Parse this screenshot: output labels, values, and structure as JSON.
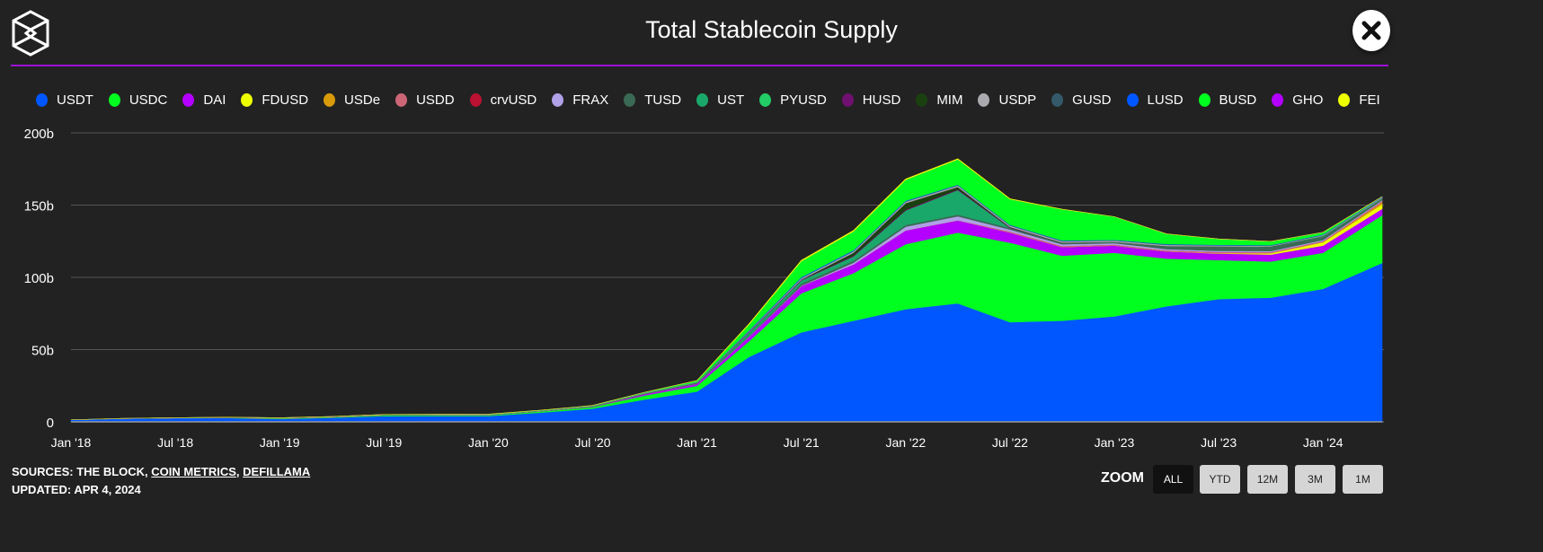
{
  "header": {
    "title": "Total Stablecoin Supply",
    "logo_icon": "the-block-logo-icon",
    "close_icon": "close-icon",
    "accent_color": "#9b10d8"
  },
  "footer": {
    "sources_prefix": "SOURCES: THE BLOCK, ",
    "sources_links": [
      "COIN METRICS",
      "DEFILLAMA"
    ],
    "updated": "UPDATED: APR 4, 2024"
  },
  "zoom": {
    "label": "ZOOM",
    "buttons": [
      "ALL",
      "YTD",
      "12M",
      "3M",
      "1M"
    ],
    "active": "ALL"
  },
  "chart_data": {
    "type": "area",
    "stacked": true,
    "title": "Total Stablecoin Supply",
    "xlabel": "",
    "ylabel": "",
    "ylim": [
      0,
      200
    ],
    "y_unit": "b",
    "yticks": [
      "0",
      "50b",
      "100b",
      "150b",
      "200b"
    ],
    "xticks": [
      "Jan '18",
      "Jul '18",
      "Jan '19",
      "Jul '19",
      "Jan '20",
      "Jul '20",
      "Jan '21",
      "Jul '21",
      "Jan '22",
      "Jul '22",
      "Jan '23",
      "Jul '23",
      "Jan '24"
    ],
    "grid": true,
    "legend": "top",
    "x": [
      "2018-01",
      "2018-04",
      "2018-07",
      "2018-10",
      "2019-01",
      "2019-04",
      "2019-07",
      "2019-10",
      "2020-01",
      "2020-04",
      "2020-07",
      "2020-10",
      "2021-01",
      "2021-04",
      "2021-07",
      "2021-10",
      "2022-01",
      "2022-04",
      "2022-07",
      "2022-10",
      "2023-01",
      "2023-04",
      "2023-07",
      "2023-10",
      "2024-01",
      "2024-04"
    ],
    "series": [
      {
        "name": "USDT",
        "color": "#0057ff",
        "values": [
          1.4,
          2.3,
          2.7,
          2.7,
          2.0,
          2.8,
          4.0,
          4.1,
          4.1,
          6.4,
          9.2,
          15.5,
          21,
          45,
          62,
          70,
          78,
          82,
          69,
          70,
          73,
          80,
          85,
          86,
          92,
          110
        ]
      },
      {
        "name": "USDC",
        "color": "#00ff1e",
        "values": [
          0,
          0,
          0,
          0.1,
          0.25,
          0.3,
          0.5,
          0.5,
          0.5,
          0.8,
          1.1,
          2.8,
          4,
          11,
          27,
          33,
          45,
          49,
          55,
          45,
          44,
          33,
          27,
          25,
          25,
          33
        ]
      },
      {
        "name": "DAI",
        "color": "#b300ff",
        "values": [
          0,
          0,
          0,
          0.05,
          0.08,
          0.1,
          0.1,
          0.1,
          0.1,
          0.12,
          0.2,
          0.9,
          1.3,
          3,
          5,
          6,
          9.5,
          8.5,
          7,
          6,
          5,
          5,
          4.5,
          4.8,
          5,
          4.5
        ]
      },
      {
        "name": "FDUSD",
        "color": "#eeff00",
        "values": [
          0,
          0,
          0,
          0,
          0,
          0,
          0,
          0,
          0,
          0,
          0,
          0,
          0,
          0,
          0,
          0,
          0,
          0,
          0,
          0,
          0,
          0,
          0.3,
          0.9,
          2.3,
          3
        ]
      },
      {
        "name": "USDe",
        "color": "#d99a0a",
        "values": [
          0,
          0,
          0,
          0,
          0,
          0,
          0,
          0,
          0,
          0,
          0,
          0,
          0,
          0,
          0,
          0,
          0,
          0,
          0,
          0,
          0,
          0,
          0,
          0,
          0.1,
          1.5
        ]
      },
      {
        "name": "USDD",
        "color": "#cc6677",
        "values": [
          0,
          0,
          0,
          0,
          0,
          0,
          0,
          0,
          0,
          0,
          0,
          0,
          0,
          0,
          0,
          0,
          0,
          0,
          0.7,
          0.7,
          0.7,
          0.7,
          0.7,
          0.7,
          0.7,
          0.7
        ]
      },
      {
        "name": "crvUSD",
        "color": "#bb1133",
        "values": [
          0,
          0,
          0,
          0,
          0,
          0,
          0,
          0,
          0,
          0,
          0,
          0,
          0,
          0,
          0,
          0,
          0,
          0,
          0,
          0,
          0,
          0,
          0.05,
          0.1,
          0.1,
          0.1
        ]
      },
      {
        "name": "FRAX",
        "color": "#b0a0e8",
        "values": [
          0,
          0,
          0,
          0,
          0,
          0,
          0,
          0,
          0,
          0,
          0,
          0,
          0.1,
          0.2,
          0.3,
          1.2,
          2.6,
          2.8,
          1.4,
          1.2,
          1,
          0.9,
          0.8,
          0.7,
          0.65,
          0.65
        ]
      },
      {
        "name": "TUSD",
        "color": "#3a6a55",
        "values": [
          0,
          0.1,
          0.15,
          0.2,
          0.2,
          0.2,
          0.2,
          0.15,
          0.14,
          0.14,
          0.2,
          0.3,
          0.3,
          0.6,
          1.4,
          1.3,
          1.2,
          1.1,
          1.1,
          0.9,
          0.8,
          2,
          3,
          3,
          2.5,
          1
        ]
      },
      {
        "name": "UST",
        "color": "#1aa86a",
        "values": [
          0,
          0,
          0,
          0,
          0,
          0,
          0,
          0,
          0,
          0,
          0,
          0,
          0.2,
          2,
          2.2,
          3,
          10,
          17,
          0,
          0,
          0,
          0,
          0,
          0,
          0,
          0
        ]
      },
      {
        "name": "PYUSD",
        "color": "#22cc66",
        "values": [
          0,
          0,
          0,
          0,
          0,
          0,
          0,
          0,
          0,
          0,
          0,
          0,
          0,
          0,
          0,
          0,
          0,
          0,
          0,
          0,
          0,
          0,
          0,
          0.05,
          0.3,
          0.3
        ]
      },
      {
        "name": "HUSD",
        "color": "#701070",
        "values": [
          0,
          0,
          0,
          0,
          0,
          0,
          0,
          0,
          0,
          0,
          0.1,
          0.2,
          0.3,
          0.5,
          0.5,
          0.6,
          0.6,
          0.6,
          0.4,
          0.1,
          0,
          0,
          0,
          0,
          0,
          0
        ]
      },
      {
        "name": "MIM",
        "color": "#1a4010",
        "values": [
          0,
          0,
          0,
          0,
          0,
          0,
          0,
          0,
          0,
          0,
          0,
          0,
          0,
          0,
          0.1,
          2,
          4.5,
          1.6,
          0.3,
          0.2,
          0.1,
          0.1,
          0.1,
          0.1,
          0.1,
          0.1
        ]
      },
      {
        "name": "USDP",
        "color": "#aaaab0",
        "values": [
          0,
          0,
          0,
          0.15,
          0.2,
          0.2,
          0.2,
          0.2,
          0.25,
          0.25,
          0.25,
          0.3,
          0.3,
          0.5,
          0.9,
          0.95,
          0.95,
          0.95,
          0.9,
          0.85,
          0.8,
          0.8,
          0.6,
          0.5,
          0.5,
          0.5
        ]
      },
      {
        "name": "GUSD",
        "color": "#345a6a",
        "values": [
          0,
          0,
          0,
          0.05,
          0.1,
          0.1,
          0.1,
          0.1,
          0.1,
          0.1,
          0.1,
          0.1,
          0.1,
          0.2,
          0.2,
          0.3,
          0.3,
          0.3,
          0.3,
          0.3,
          0.3,
          0.3,
          0.2,
          0.2,
          0.1,
          0.1
        ]
      },
      {
        "name": "LUSD",
        "color": "#0057ff",
        "values": [
          0,
          0,
          0,
          0,
          0,
          0,
          0,
          0,
          0,
          0,
          0,
          0,
          0,
          0.5,
          0.6,
          0.5,
          0.4,
          0.3,
          0.3,
          0.3,
          0.3,
          0.3,
          0.3,
          0.3,
          0.3,
          0.3
        ]
      },
      {
        "name": "BUSD",
        "color": "#00ff1e",
        "values": [
          0,
          0,
          0,
          0,
          0,
          0,
          0,
          0.02,
          0.1,
          0.2,
          0.2,
          0.4,
          1,
          4,
          11,
          13,
          14.5,
          17.5,
          17.7,
          21.5,
          16,
          7,
          4,
          2.5,
          1.5,
          0.1
        ]
      },
      {
        "name": "GHO",
        "color": "#b300ff",
        "values": [
          0,
          0,
          0,
          0,
          0,
          0,
          0,
          0,
          0,
          0,
          0,
          0,
          0,
          0,
          0,
          0,
          0,
          0,
          0,
          0,
          0,
          0,
          0.02,
          0.03,
          0.05,
          0.05
        ]
      },
      {
        "name": "FEI",
        "color": "#eeff00",
        "values": [
          0,
          0,
          0,
          0,
          0,
          0,
          0,
          0,
          0,
          0,
          0,
          0,
          0,
          0.5,
          0.6,
          0.6,
          0.5,
          0.4,
          0.3,
          0.1,
          0,
          0,
          0,
          0,
          0,
          0
        ]
      }
    ]
  }
}
